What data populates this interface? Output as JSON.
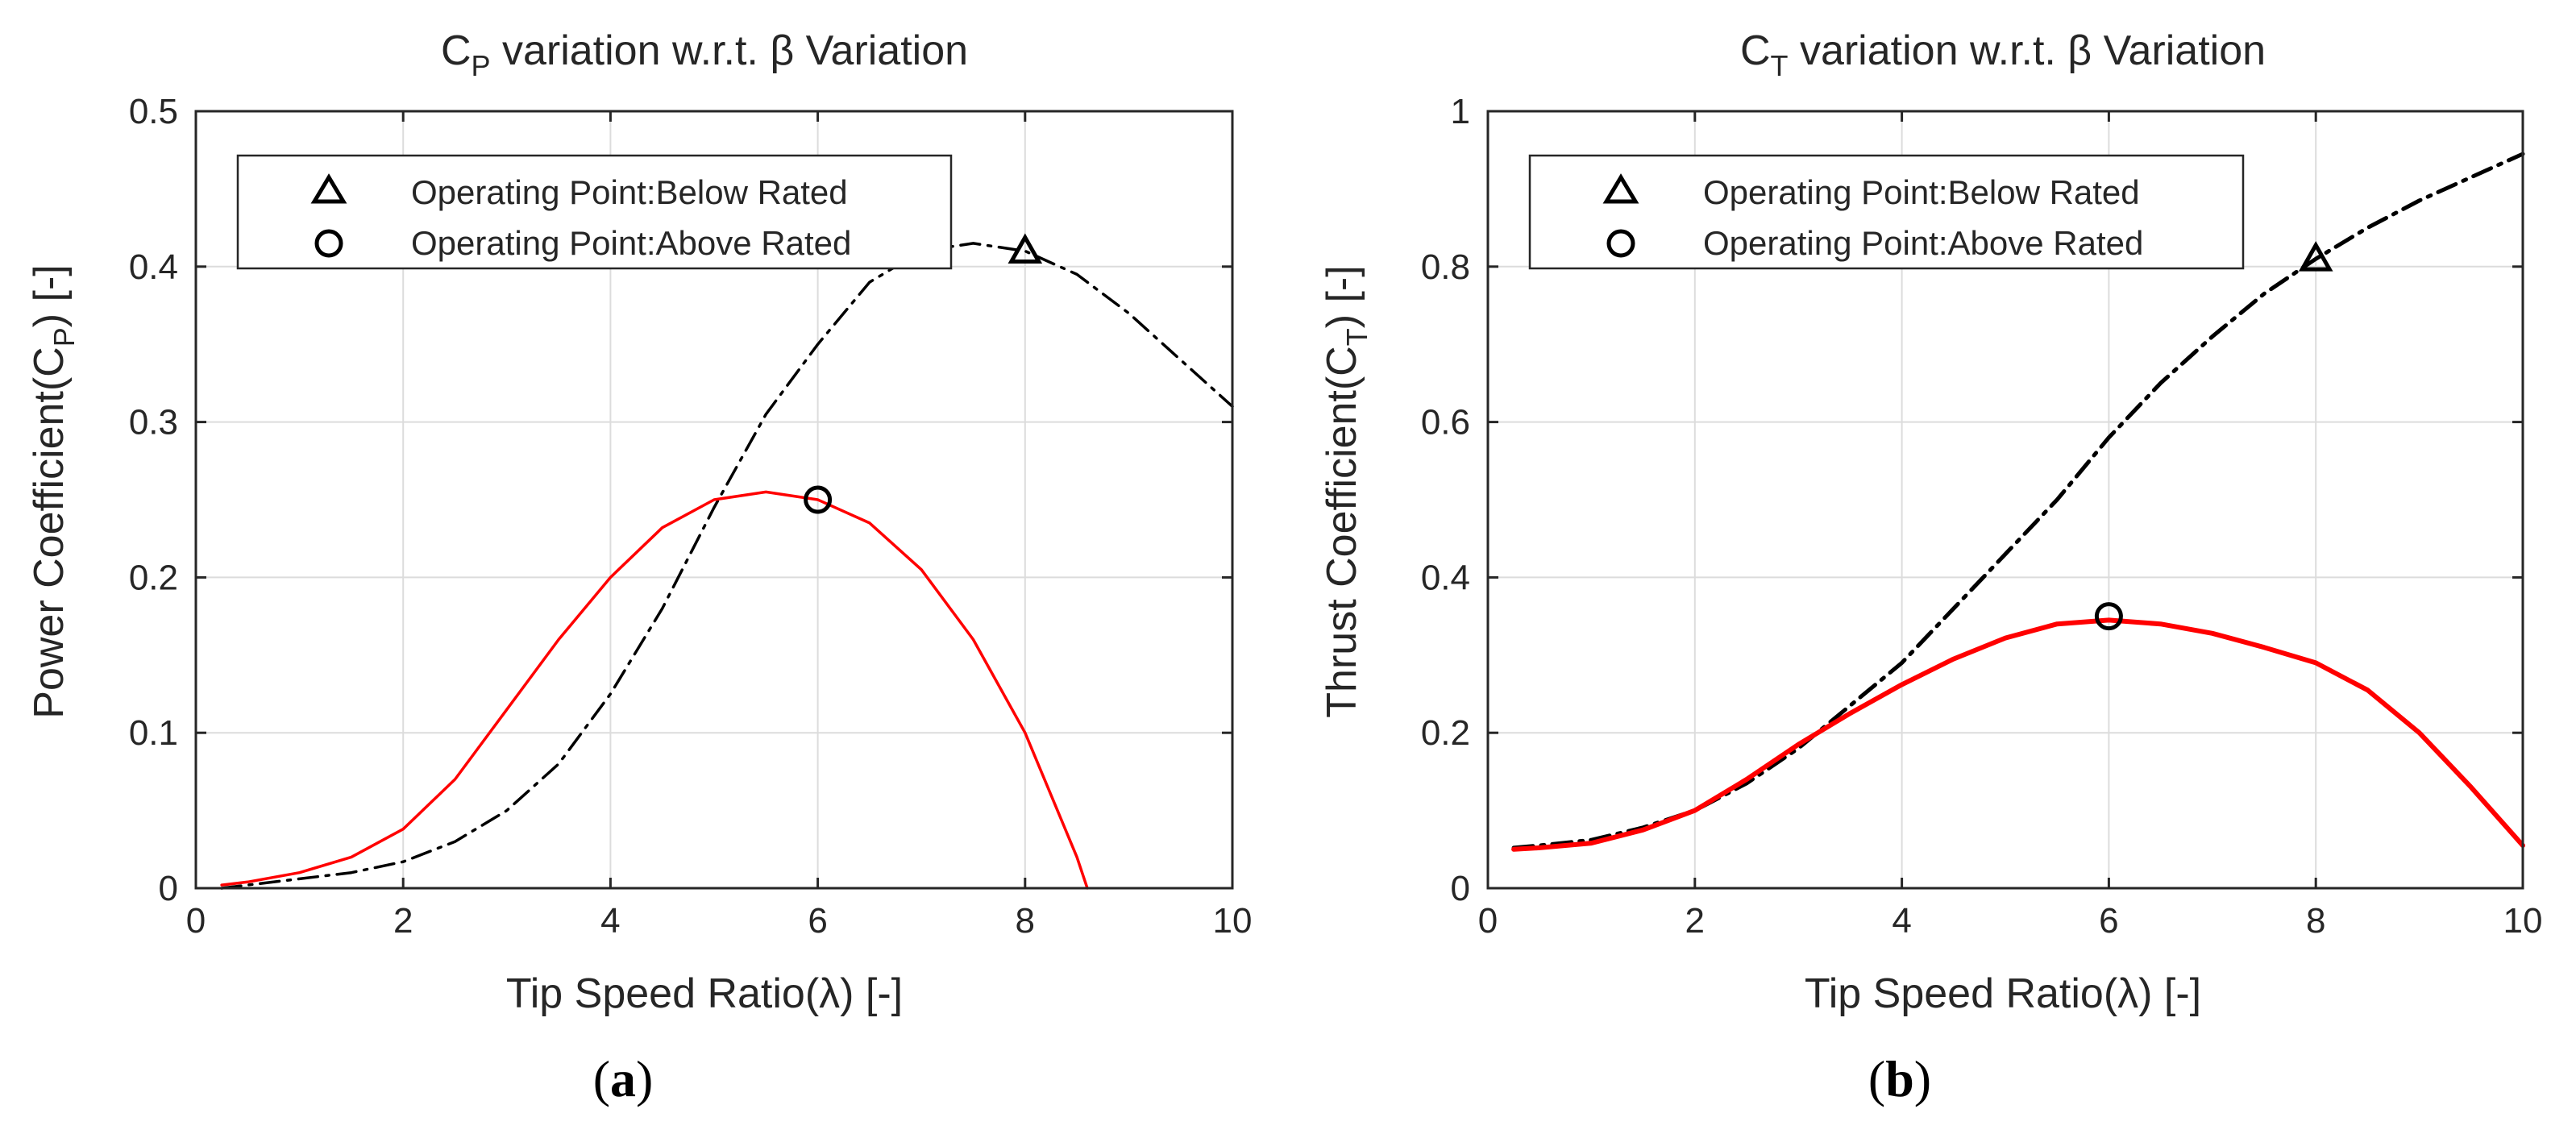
{
  "chart_data": [
    {
      "type": "line",
      "title_main": "C",
      "title_sub": "P",
      "title_rest": " variation w.r.t. β Variation",
      "ylabel_main": "Power Coefficient(C",
      "ylabel_sub": "P",
      "ylabel_end": ") [-]",
      "xlabel": "Tip Speed Ratio(λ) [-]",
      "caption_pre": "(",
      "caption_letter": "a",
      "caption_post": ")",
      "xlim": [
        0,
        10
      ],
      "ylim": [
        0,
        0.5
      ],
      "xticks": [
        0,
        2,
        4,
        6,
        8,
        10
      ],
      "xtick_labels": [
        "0",
        "2",
        "4",
        "6",
        "8",
        "10"
      ],
      "yticks": [
        0,
        0.1,
        0.2,
        0.3,
        0.4,
        0.5
      ],
      "ytick_labels": [
        "0",
        "0.1",
        "0.2",
        "0.3",
        "0.4",
        "0.5"
      ],
      "grid": true,
      "legend_position": "top-left",
      "legend": [
        {
          "marker": "triangle",
          "label": "Operating Point:Below Rated"
        },
        {
          "marker": "circle",
          "label": "Operating Point:Above Rated"
        }
      ],
      "series": [
        {
          "name": "Below Rated",
          "color": "#000000",
          "dash": "dashdot",
          "x": [
            0.25,
            0.5,
            1,
            1.5,
            2,
            2.5,
            3,
            3.5,
            4,
            4.5,
            5,
            5.5,
            6,
            6.5,
            7,
            7.5,
            8,
            8.5,
            9,
            9.5,
            10
          ],
          "y": [
            0.0,
            0.002,
            0.006,
            0.01,
            0.017,
            0.03,
            0.05,
            0.08,
            0.125,
            0.18,
            0.245,
            0.305,
            0.35,
            0.39,
            0.41,
            0.415,
            0.41,
            0.395,
            0.37,
            0.34,
            0.31
          ]
        },
        {
          "name": "Above Rated",
          "color": "#ff0000",
          "dash": "solid",
          "x": [
            0.25,
            0.5,
            1,
            1.5,
            2,
            2.5,
            3,
            3.5,
            4,
            4.5,
            5,
            5.5,
            6,
            6.5,
            7,
            7.5,
            8,
            8.5,
            8.6
          ],
          "y": [
            0.002,
            0.004,
            0.01,
            0.02,
            0.038,
            0.07,
            0.115,
            0.16,
            0.2,
            0.232,
            0.25,
            0.255,
            0.25,
            0.235,
            0.205,
            0.16,
            0.1,
            0.02,
            0.0
          ]
        }
      ],
      "operating_points": [
        {
          "marker": "triangle",
          "x": 8,
          "y": 0.41
        },
        {
          "marker": "circle",
          "x": 6,
          "y": 0.25
        }
      ]
    },
    {
      "type": "line",
      "title_main": "C",
      "title_sub": "T",
      "title_rest": " variation w.r.t. β Variation",
      "ylabel_main": "Thrust Coefficient(C",
      "ylabel_sub": "T",
      "ylabel_end": ") [-]",
      "xlabel": "Tip Speed Ratio(λ) [-]",
      "caption_pre": "(",
      "caption_letter": "b",
      "caption_post": ")",
      "xlim": [
        0,
        10
      ],
      "ylim": [
        0,
        1
      ],
      "xticks": [
        0,
        2,
        4,
        6,
        8,
        10
      ],
      "xtick_labels": [
        "0",
        "2",
        "4",
        "6",
        "8",
        "10"
      ],
      "yticks": [
        0,
        0.2,
        0.4,
        0.6,
        0.8,
        1
      ],
      "ytick_labels": [
        "0",
        "0.2",
        "0.4",
        "0.6",
        "0.8",
        "1"
      ],
      "grid": true,
      "legend_position": "top-left",
      "legend": [
        {
          "marker": "triangle",
          "label": "Operating Point:Below Rated"
        },
        {
          "marker": "circle",
          "label": "Operating Point:Above Rated"
        }
      ],
      "series": [
        {
          "name": "Below Rated",
          "color": "#000000",
          "dash": "dashdot",
          "x": [
            0.25,
            0.5,
            1,
            1.5,
            2,
            2.5,
            3,
            3.5,
            4,
            4.5,
            5,
            5.5,
            6,
            6.5,
            7,
            7.5,
            8,
            8.5,
            9,
            9.5,
            10
          ],
          "y": [
            0.052,
            0.055,
            0.062,
            0.078,
            0.1,
            0.135,
            0.18,
            0.235,
            0.29,
            0.36,
            0.43,
            0.5,
            0.58,
            0.65,
            0.71,
            0.765,
            0.81,
            0.85,
            0.885,
            0.915,
            0.945
          ]
        },
        {
          "name": "Above Rated",
          "color": "#ff0000",
          "dash": "solid",
          "x": [
            0.25,
            0.5,
            1,
            1.5,
            2,
            2.5,
            3,
            3.5,
            4,
            4.5,
            5,
            5.5,
            6,
            6.5,
            7,
            7.5,
            8,
            8.5,
            9,
            9.5,
            10
          ],
          "y": [
            0.05,
            0.052,
            0.058,
            0.075,
            0.1,
            0.14,
            0.185,
            0.225,
            0.262,
            0.295,
            0.322,
            0.34,
            0.345,
            0.34,
            0.328,
            0.31,
            0.29,
            0.255,
            0.2,
            0.13,
            0.055
          ]
        }
      ],
      "operating_points": [
        {
          "marker": "triangle",
          "x": 8,
          "y": 0.81
        },
        {
          "marker": "circle",
          "x": 6,
          "y": 0.35
        }
      ]
    }
  ]
}
